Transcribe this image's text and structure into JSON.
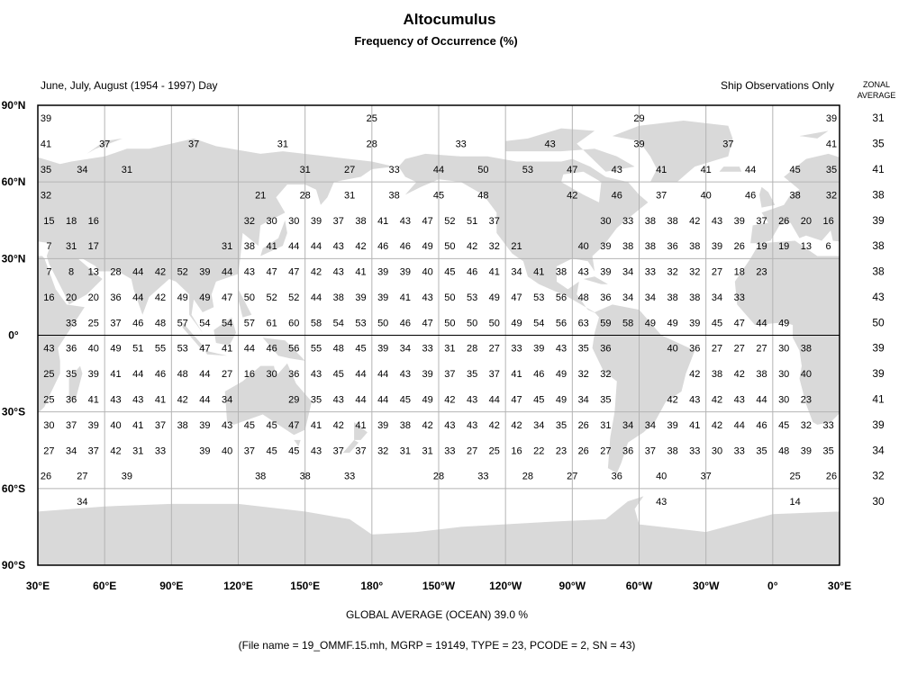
{
  "header": {
    "title": "Altocumulus",
    "subtitle": "Frequency of Occurrence (%)",
    "period": "June, July, August (1954 - 1997) Day",
    "source": "Ship Observations Only",
    "zonal_heading_1": "ZONAL",
    "zonal_heading_2": "AVERAGE"
  },
  "footer": {
    "global_average": "GLOBAL AVERAGE (OCEAN)   39.0 %",
    "file_info": "(File name = 19_OMMF.15.mh, MGRP = 19149, TYPE = 23, PCODE = 2, SN = 43)"
  },
  "colors": {
    "land": "#d9d9d9",
    "grid": "#b4b4b4",
    "frame": "#000000",
    "ocean": "#ffffff"
  },
  "chart_data": {
    "type": "map-grid",
    "projection": "equirectangular",
    "lon_range": [
      "30°E",
      "30°E"
    ],
    "lat_range": [
      90,
      -90
    ],
    "grid_spacing_deg": 30,
    "lat_labels": [
      {
        "lat": 90,
        "label": "90°N"
      },
      {
        "lat": 60,
        "label": "60°N"
      },
      {
        "lat": 30,
        "label": "30°N"
      },
      {
        "lat": 0,
        "label": "0°"
      },
      {
        "lat": -30,
        "label": "30°S"
      },
      {
        "lat": -60,
        "label": "60°S"
      },
      {
        "lat": -90,
        "label": "90°S"
      }
    ],
    "lon_labels": [
      {
        "lon": 30,
        "label": "30°E"
      },
      {
        "lon": 60,
        "label": "60°E"
      },
      {
        "lon": 90,
        "label": "90°E"
      },
      {
        "lon": 120,
        "label": "120°E"
      },
      {
        "lon": 150,
        "label": "150°E"
      },
      {
        "lon": 180,
        "label": "180°"
      },
      {
        "lon": 210,
        "label": "150°W"
      },
      {
        "lon": 240,
        "label": "120°W"
      },
      {
        "lon": 270,
        "label": "90°W"
      },
      {
        "lon": 300,
        "label": "60°W"
      },
      {
        "lon": 330,
        "label": "30°W"
      },
      {
        "lon": 360,
        "label": "0°"
      },
      {
        "lon": 390,
        "label": "30°E"
      }
    ],
    "rows": [
      {
        "lat_north": 90,
        "lat_south": 80,
        "cell_deg": 120,
        "start_lon": 0,
        "zonal_average": "31",
        "values": [
          39,
          25,
          29
        ]
      },
      {
        "lat_north": 80,
        "lat_south": 70,
        "cell_deg": 40,
        "start_lon": 0,
        "zonal_average": "35",
        "values": [
          41,
          37,
          37,
          31,
          28,
          33,
          43,
          39,
          37
        ]
      },
      {
        "lat_north": 70,
        "lat_south": 60,
        "cell_deg": 20,
        "start_lon": 20,
        "zonal_average": "41",
        "values": [
          35,
          34,
          31,
          null,
          null,
          null,
          31,
          27,
          33,
          44,
          50,
          53,
          47,
          43,
          41,
          41,
          44,
          45
        ]
      },
      {
        "lat_north": 60,
        "lat_south": 50,
        "cell_deg": 20,
        "start_lon": 20,
        "zonal_average": "38",
        "values": [
          32,
          null,
          null,
          null,
          null,
          21,
          28,
          31,
          38,
          45,
          48,
          null,
          42,
          46,
          37,
          40,
          46,
          38
        ]
      },
      {
        "lat_north": 50,
        "lat_south": 40,
        "cell_deg": 10,
        "start_lon": 30,
        "zonal_average": "39",
        "values": [
          15,
          18,
          16,
          null,
          null,
          null,
          null,
          null,
          null,
          32,
          30,
          30,
          39,
          37,
          38,
          41,
          43,
          47,
          52,
          51,
          37,
          null,
          null,
          null,
          null,
          30,
          33,
          38,
          38,
          42,
          43,
          39,
          37,
          26,
          20,
          16
        ]
      },
      {
        "lat_north": 40,
        "lat_south": 30,
        "cell_deg": 10,
        "start_lon": 30,
        "zonal_average": "38",
        "values": [
          7,
          31,
          17,
          null,
          null,
          null,
          null,
          null,
          31,
          38,
          41,
          44,
          44,
          43,
          42,
          46,
          46,
          49,
          50,
          42,
          32,
          21,
          null,
          null,
          40,
          39,
          38,
          38,
          36,
          38,
          39,
          26,
          19,
          19,
          13,
          6
        ]
      },
      {
        "lat_north": 30,
        "lat_south": 20,
        "cell_deg": 10,
        "start_lon": 30,
        "zonal_average": "38",
        "values": [
          7,
          8,
          13,
          28,
          44,
          42,
          52,
          39,
          44,
          43,
          47,
          47,
          42,
          43,
          41,
          39,
          39,
          40,
          45,
          46,
          41,
          34,
          41,
          38,
          43,
          39,
          34,
          33,
          32,
          32,
          27,
          18,
          23,
          null,
          null,
          null
        ]
      },
      {
        "lat_north": 20,
        "lat_south": 10,
        "cell_deg": 10,
        "start_lon": 30,
        "zonal_average": "43",
        "values": [
          16,
          20,
          20,
          36,
          44,
          42,
          49,
          49,
          47,
          50,
          52,
          52,
          44,
          38,
          39,
          39,
          41,
          43,
          50,
          53,
          49,
          47,
          53,
          56,
          48,
          36,
          34,
          34,
          38,
          38,
          34,
          33,
          null,
          null,
          null,
          null
        ]
      },
      {
        "lat_north": 10,
        "lat_south": 0,
        "cell_deg": 10,
        "start_lon": 30,
        "zonal_average": "50",
        "values": [
          null,
          33,
          25,
          37,
          46,
          48,
          57,
          54,
          54,
          57,
          61,
          60,
          58,
          54,
          53,
          50,
          46,
          47,
          50,
          50,
          50,
          49,
          54,
          56,
          63,
          59,
          58,
          49,
          49,
          39,
          45,
          47,
          44,
          49,
          null,
          null
        ]
      },
      {
        "lat_north": 0,
        "lat_south": -10,
        "cell_deg": 10,
        "start_lon": 30,
        "zonal_average": "39",
        "values": [
          43,
          36,
          40,
          49,
          51,
          55,
          53,
          47,
          41,
          44,
          46,
          56,
          55,
          48,
          45,
          39,
          34,
          33,
          31,
          28,
          27,
          33,
          39,
          43,
          35,
          36,
          null,
          null,
          40,
          36,
          27,
          27,
          27,
          30,
          38,
          null
        ]
      },
      {
        "lat_north": -10,
        "lat_south": -20,
        "cell_deg": 10,
        "start_lon": 30,
        "zonal_average": "39",
        "values": [
          25,
          35,
          39,
          41,
          44,
          46,
          48,
          44,
          27,
          16,
          30,
          36,
          43,
          45,
          44,
          44,
          43,
          39,
          37,
          35,
          37,
          41,
          46,
          49,
          32,
          32,
          null,
          null,
          null,
          42,
          38,
          42,
          38,
          30,
          40,
          null
        ]
      },
      {
        "lat_north": -20,
        "lat_south": -30,
        "cell_deg": 10,
        "start_lon": 30,
        "zonal_average": "41",
        "values": [
          25,
          36,
          41,
          43,
          43,
          41,
          42,
          44,
          34,
          null,
          null,
          29,
          35,
          43,
          44,
          44,
          45,
          49,
          42,
          43,
          44,
          47,
          45,
          49,
          34,
          35,
          null,
          null,
          42,
          43,
          42,
          43,
          44,
          30,
          23,
          null
        ]
      },
      {
        "lat_north": -30,
        "lat_south": -40,
        "cell_deg": 10,
        "start_lon": 30,
        "zonal_average": "39",
        "values": [
          30,
          37,
          39,
          40,
          41,
          37,
          38,
          39,
          43,
          45,
          45,
          47,
          41,
          42,
          41,
          39,
          38,
          42,
          43,
          43,
          42,
          42,
          34,
          35,
          26,
          31,
          34,
          34,
          39,
          41,
          42,
          44,
          46,
          45,
          32,
          33
        ]
      },
      {
        "lat_north": -40,
        "lat_south": -50,
        "cell_deg": 10,
        "start_lon": 30,
        "zonal_average": "34",
        "values": [
          27,
          34,
          37,
          42,
          31,
          33,
          null,
          39,
          40,
          37,
          45,
          45,
          43,
          37,
          37,
          32,
          31,
          31,
          33,
          27,
          25,
          16,
          22,
          23,
          26,
          27,
          36,
          37,
          38,
          33,
          30,
          33,
          35,
          48,
          39,
          35
        ]
      },
      {
        "lat_north": -50,
        "lat_south": -60,
        "cell_deg": 20,
        "start_lon": 20,
        "zonal_average": "32",
        "values": [
          26,
          27,
          39,
          null,
          null,
          38,
          38,
          33,
          null,
          28,
          33,
          28,
          27,
          36,
          40,
          37,
          null,
          25
        ]
      },
      {
        "lat_north": -60,
        "lat_south": -70,
        "cell_deg": 20,
        "start_lon": 20,
        "zonal_average": "30",
        "values": [
          null,
          34,
          null,
          null,
          null,
          null,
          null,
          null,
          null,
          null,
          null,
          null,
          null,
          null,
          43,
          null,
          null,
          14
        ]
      }
    ]
  }
}
